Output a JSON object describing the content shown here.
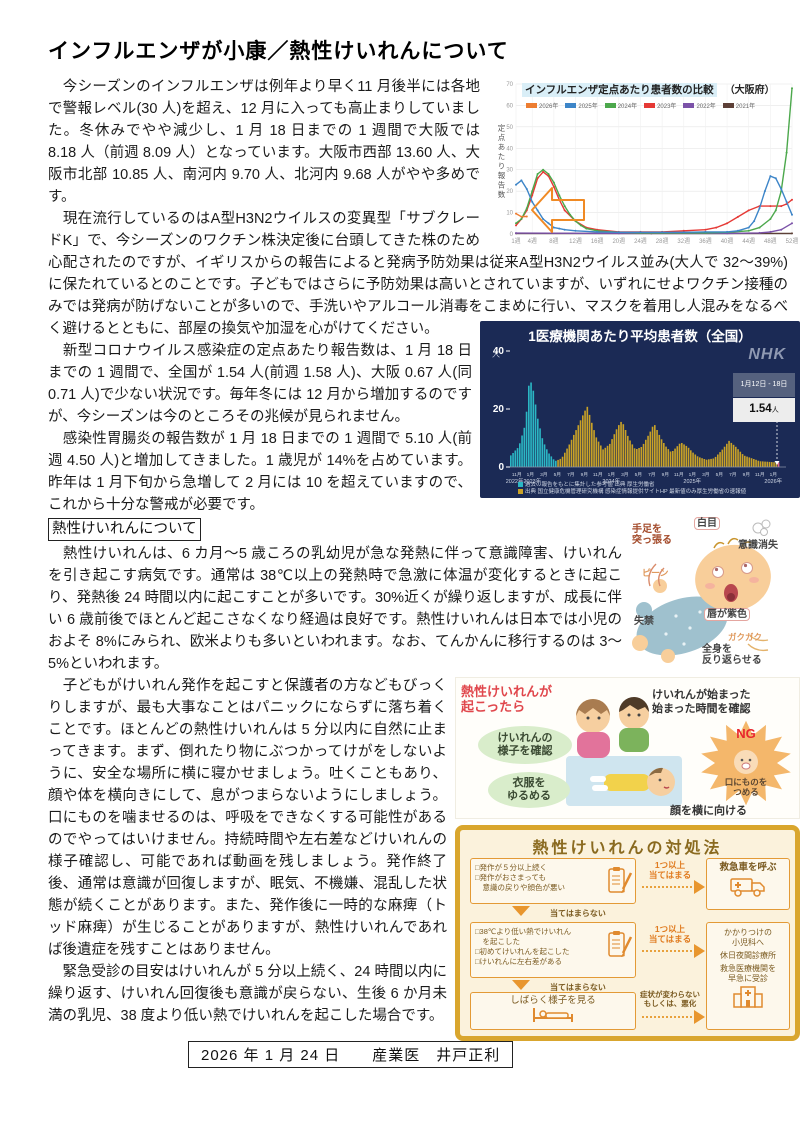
{
  "page": {
    "title": "インフルエンザが小康／熱性けいれんについて",
    "footer": "2026 年 1 月 24 日　　産業医　井戸正利"
  },
  "article": {
    "p1": "　今シーズンのインフルエンザは例年より早く11 月後半には各地で警報レベル(30 人)を超え、12 月に入っても高止まりしていました。冬休みでやや減少し、1 月 18 日までの 1 週間で大阪では 8.18 人（前週 8.09 人）となっています。大阪市西部 13.60 人、大阪市北部 10.85 人、南河内 9.70 人、北河内 9.68 人がやや多めです。",
    "p2a": "　現在流行しているのはA型H3N2ウイルスの変異型「サブクレードK」で、今シーズンのワクチン株決定後に台頭してきた株のため心配されたのですが、イギリスからの報告によると発病予防効果は従来A型H3N2ウイルス並み(大人で 32～39%)に保たれているとのことです。子どもではさらに予防効果は高いとされていますが、いずれにせよワクチン接種のみでは発病が防げないことが多いので、手洗いやアルコール消毒をこまめ",
    "p2b": "に行い、マスクを着用し人混みをなるべく避けるとともに、部屋の換気や加湿を心がけてください。",
    "p3": "　新型コロナウイルス感染症の定点あたり報告数は、1 月 18 日までの 1 週間で、全国が 1.54 人(前週 1.58 人)、大阪 0.67 人(同 0.71 人)で少ない状況です。毎年冬には 12 月から増加するのですが、今シーズンは今のところその兆候が見られません。",
    "p4": "　感染性胃腸炎の報告数が 1 月 18 日までの 1 週間で 5.10 人(前週 4.50 人)と増加してきました。1 歳児が 14%を占めています。昨年は 1 月下旬から急増して 2 月には 10 を超えていますので、これから十分な警戒が必要です。",
    "section_heading": "熱性けいれんについて",
    "p5": "　熱性けいれんは、6 カ月～5 歳ころの乳幼児が急な発熱に伴って意識障害、けいれんを引き起こす病気です。通常は 38℃以上の発熱時で急激に体温が変化するときに起こり、発熱後 24 時間以内に起こすことが多いです。30%近くが繰り返しますが、成長に伴い 6 歳前後でほとんど起こさなくなり経過は良好です。熱性けいれんは日本では小児のおよそ 8%にみられ、欧米よりも多いといわれます。なお、てんかんに移行するのは 3～5%といわれます。",
    "p6": "　子どもがけいれん発作を起こすと保護者の方などもびっくりしますが、最も大事なことはパニックにならずに落ち着くことです。ほとんどの熱性けいれんは 5 分以内に自然に止まってきます。まず、倒れたり物にぶつかってけがをしないように、安全な場所に横に寝かせましょう。吐くこともあり、顔や体を横向きにして、息がつまらないようにしましょう。口にものを噛ませるのは、呼吸をできなくする可能性があるのでやってはいけません。持続時間や左右差などけいれんの様子確認し、可能であれば動画を残しましょう。発作終了後、通常は意識が回復しますが、眠気、不機嫌、混乱した状態が続くことがあります。また、発作後に一時的な麻痺（トッド麻痺）が生じることがありますが、熱性けいれんであれば後遺症を残すことはありません。",
    "p7": "　緊急受診の目安はけいれんが 5 分以上続く、24 時間以内に繰り返す、けいれん回復後も意識が戻らない、生後 6 か月未満の乳児、38 度より低い熱でけいれんを起こした場合です。"
  },
  "chart_data": [
    {
      "type": "line",
      "title": "インフルエンザ定点あたり患者数の比較",
      "subtitle": "（大阪府）",
      "ylabel": "定点あたり報告数",
      "ylim": [
        0,
        70
      ],
      "yticks": [
        0,
        10,
        20,
        30,
        40,
        50,
        60,
        70
      ],
      "xticks_weeks": [
        1,
        4,
        8,
        12,
        16,
        20,
        24,
        28,
        32,
        36,
        40,
        44,
        48,
        52
      ],
      "xticklabels": [
        "1週",
        "4週",
        "8週",
        "12週",
        "16週",
        "20週",
        "24週",
        "28週",
        "32週",
        "36週",
        "40週",
        "44週",
        "48週",
        "52週"
      ],
      "grid": true,
      "legend_position": "top",
      "series": [
        {
          "name": "2026年",
          "color": "#ED7D31",
          "points": [
            [
              1,
              9.5
            ],
            [
              2,
              8.09
            ],
            [
              3,
              8.18
            ]
          ]
        },
        {
          "name": "2025年",
          "color": "#3D85C8",
          "points": [
            [
              1,
              23
            ],
            [
              2,
              25
            ],
            [
              3,
              21
            ],
            [
              4,
              15
            ],
            [
              5,
              11
            ],
            [
              6,
              7
            ],
            [
              7,
              5
            ],
            [
              8,
              3
            ],
            [
              9,
              2.5
            ],
            [
              10,
              2
            ],
            [
              12,
              1.5
            ],
            [
              16,
              1
            ],
            [
              20,
              0.8
            ],
            [
              24,
              0.8
            ],
            [
              28,
              0.8
            ],
            [
              32,
              0.8
            ],
            [
              36,
              1
            ],
            [
              40,
              1
            ],
            [
              42,
              1.5
            ],
            [
              44,
              3
            ],
            [
              45,
              6
            ],
            [
              46,
              12
            ],
            [
              47,
              20
            ],
            [
              48,
              27
            ],
            [
              49,
              26
            ],
            [
              50,
              21
            ],
            [
              51,
              15
            ],
            [
              52,
              9
            ]
          ]
        },
        {
          "name": "2024年",
          "color": "#4CA84C",
          "points": [
            [
              1,
              5
            ],
            [
              2,
              7
            ],
            [
              3,
              12
            ],
            [
              4,
              20
            ],
            [
              5,
              28
            ],
            [
              6,
              30
            ],
            [
              7,
              28
            ],
            [
              8,
              24
            ],
            [
              9,
              18
            ],
            [
              10,
              13
            ],
            [
              11,
              9
            ],
            [
              12,
              6
            ],
            [
              13,
              4
            ],
            [
              14,
              2.5
            ],
            [
              16,
              1.5
            ],
            [
              20,
              0.8
            ],
            [
              24,
              0.5
            ],
            [
              28,
              0.5
            ],
            [
              32,
              0.5
            ],
            [
              36,
              0.5
            ],
            [
              40,
              0.8
            ],
            [
              44,
              1.5
            ],
            [
              46,
              3
            ],
            [
              48,
              7
            ],
            [
              49,
              11
            ],
            [
              50,
              20
            ],
            [
              51,
              38
            ],
            [
              52,
              68
            ]
          ]
        },
        {
          "name": "2023年",
          "color": "#E53935",
          "points": [
            [
              1,
              4
            ],
            [
              2,
              7
            ],
            [
              3,
              11
            ],
            [
              4,
              18
            ],
            [
              5,
              26
            ],
            [
              6,
              29
            ],
            [
              7,
              27
            ],
            [
              8,
              22
            ],
            [
              9,
              16
            ],
            [
              10,
              11
            ],
            [
              12,
              6
            ],
            [
              14,
              3
            ],
            [
              16,
              2
            ],
            [
              20,
              1
            ],
            [
              24,
              1
            ],
            [
              28,
              1
            ],
            [
              32,
              1.5
            ],
            [
              36,
              2
            ],
            [
              38,
              3
            ],
            [
              40,
              5
            ],
            [
              42,
              8
            ],
            [
              44,
              11
            ],
            [
              46,
              13
            ],
            [
              48,
              13
            ],
            [
              50,
              13
            ],
            [
              51,
              14
            ],
            [
              52,
              16
            ]
          ]
        },
        {
          "name": "2022年",
          "color": "#7B52A8",
          "points": [
            [
              1,
              0.4
            ],
            [
              20,
              0.3
            ],
            [
              40,
              0.3
            ],
            [
              46,
              0.5
            ],
            [
              48,
              1
            ],
            [
              50,
              2
            ],
            [
              52,
              5
            ]
          ]
        },
        {
          "name": "2021年",
          "color": "#5D4037",
          "points": [
            [
              1,
              0.3
            ],
            [
              26,
              0.3
            ],
            [
              52,
              0.3
            ]
          ]
        }
      ]
    },
    {
      "type": "bar",
      "title": "1医療機関あたり平均患者数（全国）",
      "brand": "NHK",
      "unit": "人",
      "ylim": [
        0,
        40
      ],
      "yticks": [
        0,
        20,
        40
      ],
      "callout": {
        "period": "1月12日 - 18日",
        "value": "1.54",
        "value_unit": "人"
      },
      "xticklabels": [
        "11月",
        "1月",
        "3月",
        "5月",
        "7月",
        "9月",
        "11月",
        "1月",
        "3月",
        "5月",
        "7月",
        "9月",
        "11月",
        "1月",
        "3月",
        "5月",
        "7月",
        "9月",
        "11月",
        "1月"
      ],
      "year_labels": [
        "2022年2023年",
        "2024年",
        "2025年",
        "2026年"
      ],
      "cyan_until": 0.175,
      "latest_color": "#E8638C",
      "legend": [
        {
          "color": "#2BB7C4",
          "label": "過去の報告をもとに集計した参考値 出典 厚生労働省"
        },
        {
          "color": "#C9A227",
          "label": "出典 国立健康危機管理研究機構 感染症情報提供サイトHP 最新値のみ厚生労働省の速報値"
        }
      ],
      "control_points": [
        [
          0,
          4
        ],
        [
          0.03,
          7
        ],
        [
          0.055,
          15
        ],
        [
          0.07,
          31
        ],
        [
          0.085,
          26
        ],
        [
          0.1,
          17
        ],
        [
          0.12,
          9
        ],
        [
          0.14,
          5
        ],
        [
          0.165,
          2
        ],
        [
          0.19,
          3
        ],
        [
          0.22,
          8
        ],
        [
          0.25,
          14
        ],
        [
          0.285,
          21
        ],
        [
          0.3,
          16
        ],
        [
          0.32,
          10
        ],
        [
          0.345,
          6
        ],
        [
          0.37,
          8
        ],
        [
          0.4,
          14
        ],
        [
          0.415,
          16
        ],
        [
          0.44,
          10
        ],
        [
          0.465,
          6
        ],
        [
          0.49,
          7
        ],
        [
          0.52,
          12
        ],
        [
          0.535,
          15
        ],
        [
          0.56,
          10
        ],
        [
          0.58,
          7
        ],
        [
          0.6,
          5
        ],
        [
          0.62,
          7
        ],
        [
          0.635,
          8.5
        ],
        [
          0.66,
          7
        ],
        [
          0.68,
          5
        ],
        [
          0.7,
          3.5
        ],
        [
          0.73,
          2.5
        ],
        [
          0.76,
          3
        ],
        [
          0.79,
          6
        ],
        [
          0.815,
          9
        ],
        [
          0.84,
          7
        ],
        [
          0.87,
          4
        ],
        [
          0.9,
          3
        ],
        [
          0.93,
          2
        ],
        [
          0.96,
          1.8
        ],
        [
          1,
          1.54
        ]
      ]
    }
  ],
  "baby_illustration": {
    "labels": {
      "limbs": "手足を\n突っ張る",
      "stiff_sfx": "ピーン",
      "eyes": "白目",
      "consciousness": "意識消失",
      "incontinence": "失禁",
      "lips": "唇が紫色",
      "shaking_sfx": "ガクガク",
      "arch": "全身を\n反り返らせる"
    }
  },
  "response_illustration": {
    "title": "熱性けいれんが\n起こったら",
    "check_state": "けいれんの\n様子を確認",
    "loosen": "衣服を\nゆるめる",
    "time": "けいれんが始まった\n始まった時間を確認",
    "ng": "NG",
    "ng_label": "口にものを\nつめる",
    "face": "顔を横に向ける"
  },
  "flowchart": {
    "title": "熱性けいれんの対処法",
    "box1": [
      "□発作が５分以上続く",
      "□発作がおさまっても",
      "　意識の戻りや顔色が悪い"
    ],
    "match": "1つ以上\n当てはまる",
    "no_match": "当てはまらない",
    "result1": "救急車を呼ぶ",
    "box2": [
      "□38℃より低い熱でけいれん",
      "　を起こした",
      "□初めてけいれんを起こした",
      "□けいれんに左右差がある"
    ],
    "result2": [
      "かかりつけの\n小児科へ",
      "休日夜間診療所",
      "救急医療機関を\n早急に受診"
    ],
    "box3": "しばらく様子を見る",
    "worsen": "症状が変わらない\nもしくは、悪化"
  }
}
